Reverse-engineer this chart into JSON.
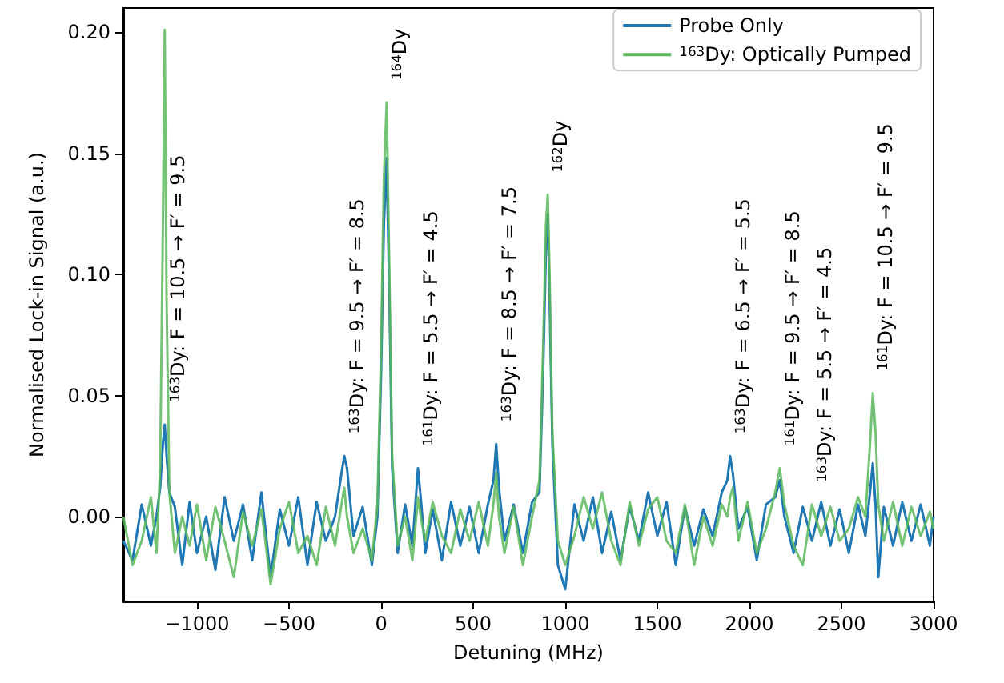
{
  "chart_data": {
    "type": "line",
    "xlabel": "Detuning (MHz)",
    "ylabel": "Normalised Lock-in Signal (a.u.)",
    "xlim": [
      -1400,
      3000
    ],
    "ylim": [
      -0.035,
      0.21
    ],
    "xticks": [
      {
        "value": -1000,
        "label": "−1000"
      },
      {
        "value": -500,
        "label": "−500"
      },
      0,
      500,
      1000,
      1500,
      2000,
      2500,
      3000
    ],
    "yticks": [
      {
        "value": 0,
        "label": "0.00"
      },
      {
        "value": 0.05,
        "label": "0.05"
      },
      {
        "value": 0.1,
        "label": "0.10"
      },
      {
        "value": 0.15,
        "label": "0.15"
      },
      {
        "value": 0.2,
        "label": "0.20"
      }
    ],
    "grid": false,
    "legend": "top right",
    "marker": "none",
    "line_style": "solid",
    "x": [
      -1400,
      -1350,
      -1300,
      -1250,
      -1220,
      -1200,
      -1185,
      -1175,
      -1165,
      -1150,
      -1120,
      -1080,
      -1040,
      -1000,
      -950,
      -900,
      -850,
      -800,
      -750,
      -700,
      -650,
      -600,
      -550,
      -500,
      -450,
      -400,
      -350,
      -300,
      -250,
      -215,
      -200,
      -185,
      -150,
      -100,
      -50,
      -20,
      0,
      15,
      30,
      45,
      60,
      90,
      130,
      170,
      200,
      215,
      240,
      280,
      330,
      380,
      430,
      480,
      530,
      580,
      610,
      625,
      640,
      670,
      720,
      770,
      820,
      860,
      880,
      895,
      905,
      915,
      930,
      960,
      1000,
      1050,
      1100,
      1150,
      1200,
      1250,
      1300,
      1350,
      1400,
      1450,
      1500,
      1550,
      1600,
      1650,
      1700,
      1750,
      1800,
      1850,
      1880,
      1895,
      1910,
      1940,
      1990,
      2040,
      2090,
      2140,
      2165,
      2190,
      2240,
      2290,
      2340,
      2390,
      2440,
      2490,
      2540,
      2590,
      2630,
      2655,
      2670,
      2685,
      2700,
      2730,
      2780,
      2830,
      2880,
      2930,
      2980,
      3000
    ],
    "series": [
      {
        "name": "Probe Only",
        "color": "#1f77b4",
        "values": [
          -0.01,
          -0.018,
          0.005,
          -0.012,
          0.0,
          0.012,
          0.03,
          0.038,
          0.025,
          0.01,
          0.004,
          -0.02,
          0.006,
          -0.015,
          0.0,
          -0.022,
          0.008,
          -0.01,
          0.005,
          -0.018,
          0.01,
          -0.025,
          0.003,
          -0.012,
          0.008,
          -0.02,
          0.006,
          -0.01,
          0.0,
          0.018,
          0.025,
          0.02,
          -0.008,
          0.004,
          -0.02,
          0.0,
          0.06,
          0.12,
          0.148,
          0.09,
          0.02,
          -0.015,
          0.005,
          -0.012,
          0.02,
          0.008,
          -0.015,
          0.003,
          -0.018,
          0.006,
          -0.012,
          0.004,
          -0.015,
          0.005,
          0.015,
          0.03,
          0.012,
          -0.01,
          0.005,
          -0.015,
          0.006,
          0.01,
          0.06,
          0.11,
          0.125,
          0.09,
          0.03,
          -0.02,
          -0.03,
          0.005,
          -0.01,
          0.008,
          -0.015,
          0.002,
          -0.018,
          0.004,
          -0.01,
          0.01,
          -0.008,
          0.006,
          -0.02,
          0.004,
          -0.012,
          0.003,
          -0.008,
          0.01,
          0.015,
          0.025,
          0.018,
          -0.005,
          0.004,
          -0.018,
          0.005,
          0.008,
          0.015,
          0.0,
          -0.015,
          0.004,
          -0.01,
          0.006,
          -0.012,
          0.003,
          -0.015,
          0.005,
          -0.008,
          0.01,
          0.022,
          0.005,
          -0.025,
          0.004,
          -0.012,
          0.006,
          -0.01,
          0.005,
          -0.012,
          0.0
        ]
      },
      {
        "name": "$^{163}$Dy: Optically Pumped",
        "color": "#5cb85c",
        "values": [
          0.0,
          -0.02,
          -0.01,
          0.008,
          -0.015,
          0.02,
          0.12,
          0.201,
          0.09,
          0.01,
          -0.015,
          0.0,
          -0.012,
          0.005,
          -0.018,
          0.004,
          -0.01,
          -0.025,
          0.002,
          -0.012,
          0.003,
          -0.028,
          -0.005,
          0.006,
          -0.015,
          -0.008,
          -0.02,
          0.004,
          -0.012,
          0.005,
          0.012,
          0.0,
          -0.015,
          -0.005,
          -0.018,
          0.005,
          0.07,
          0.14,
          0.171,
          0.1,
          0.025,
          -0.012,
          0.0,
          -0.018,
          0.008,
          0.0,
          -0.01,
          0.006,
          -0.008,
          -0.015,
          0.003,
          -0.01,
          0.006,
          -0.012,
          0.005,
          0.018,
          0.0,
          -0.015,
          0.004,
          -0.02,
          0.0,
          0.015,
          0.07,
          0.12,
          0.133,
          0.1,
          0.035,
          -0.01,
          -0.02,
          -0.008,
          0.008,
          -0.005,
          0.01,
          -0.01,
          -0.02,
          0.006,
          -0.012,
          0.003,
          0.008,
          -0.01,
          -0.015,
          0.005,
          -0.02,
          0.0,
          -0.012,
          0.005,
          0.0,
          0.008,
          0.012,
          -0.01,
          0.006,
          -0.015,
          -0.005,
          0.01,
          0.02,
          0.005,
          -0.012,
          -0.02,
          0.005,
          -0.008,
          0.004,
          -0.01,
          -0.005,
          0.008,
          0.0,
          0.03,
          0.051,
          0.035,
          0.005,
          -0.01,
          0.006,
          -0.012,
          0.004,
          -0.008,
          0.002,
          -0.005
        ]
      }
    ],
    "annotations": [
      {
        "text": "$^{163}$Dy: F = 10.5 → F′ = 9.5",
        "x": -1175,
        "y": 0.038
      },
      {
        "text": "$^{163}$Dy: F = 9.5 → F′ = 8.5",
        "x": -200,
        "y": 0.025
      },
      {
        "text": "$^{164}$Dy",
        "x": 30,
        "y": 0.171
      },
      {
        "text": "$^{161}$Dy: F = 5.5 → F′ = 4.5",
        "x": 200,
        "y": 0.02
      },
      {
        "text": "$^{163}$Dy: F = 8.5 → F′ = 7.5",
        "x": 625,
        "y": 0.03
      },
      {
        "text": "$^{162}$Dy",
        "x": 905,
        "y": 0.133
      },
      {
        "text": "$^{163}$Dy: F = 6.5 → F′ = 5.5",
        "x": 1895,
        "y": 0.025
      },
      {
        "text": "$^{161}$Dy: F = 9.5 → F′ = 8.5",
        "x": 2165,
        "y": 0.02
      },
      {
        "text": "$^{163}$Dy: F = 5.5 → F′ = 4.5",
        "x": 2340,
        "y": 0.005
      },
      {
        "text": "$^{161}$Dy: F = 10.5 → F′ = 9.5",
        "x": 2670,
        "y": 0.051
      }
    ]
  }
}
